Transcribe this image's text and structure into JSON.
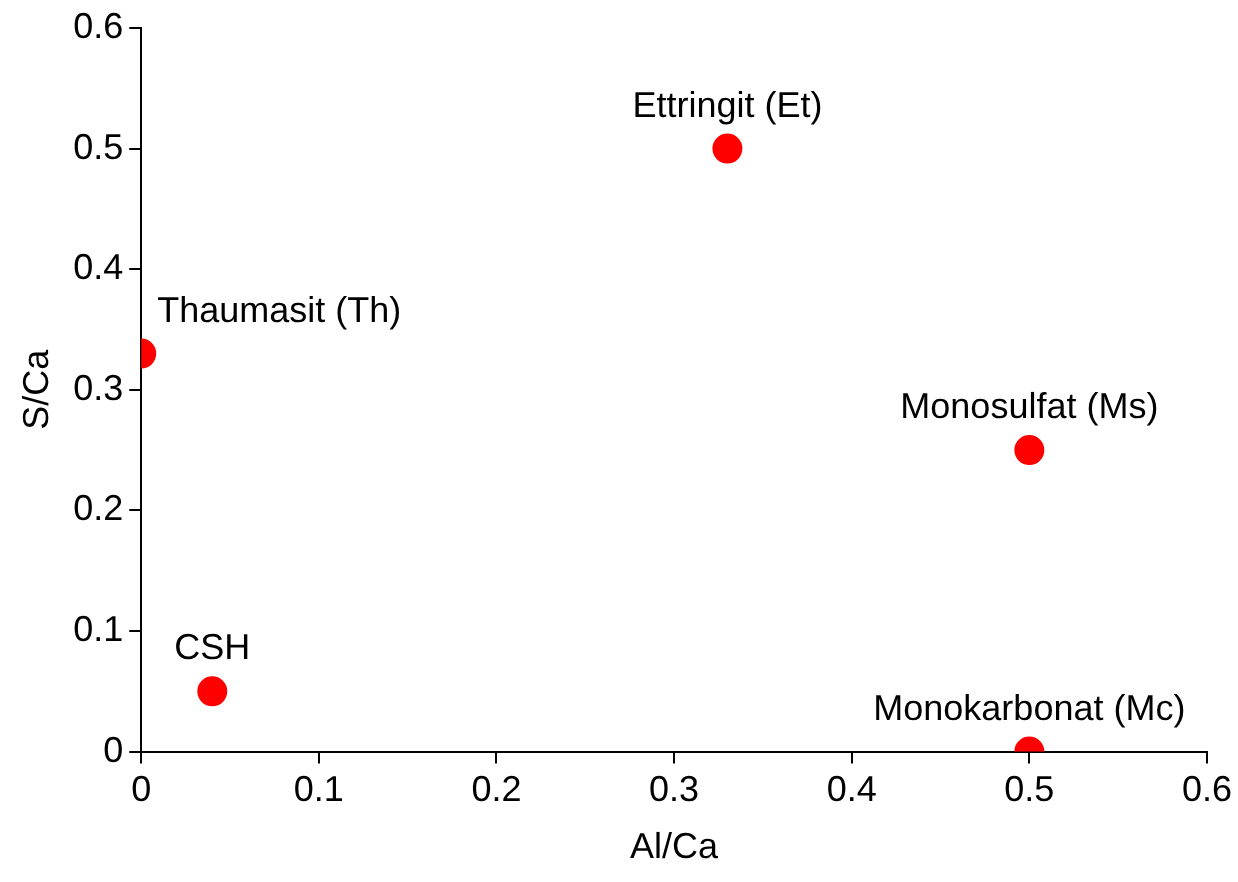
{
  "chart_data": {
    "type": "scatter",
    "xlabel": "Al/Ca",
    "ylabel": "S/Ca",
    "x": [
      0,
      0.04,
      0.33,
      0.5,
      0.5
    ],
    "series": [
      {
        "color": "#ff0000",
        "values": [
          0.33,
          0.05,
          0.5,
          0.25,
          0
        ]
      }
    ],
    "xlim": [
      0,
      0.6
    ],
    "xticks": [
      0,
      0.1,
      0.2,
      0.3,
      0.4,
      0.5,
      0.6
    ],
    "ylim": [
      0,
      0.6
    ],
    "yticks": [
      0,
      0.1,
      0.2,
      0.3,
      0.4,
      0.5,
      0.6
    ],
    "grid": false,
    "legend": false,
    "marker": "circle",
    "annotations": [
      {
        "text": "Thaumasit (Th)",
        "x": 0,
        "y": 0.33
      },
      {
        "text": "CSH",
        "x": 0.04,
        "y": 0.05
      },
      {
        "text": "Ettringit (Et)",
        "x": 0.33,
        "y": 0.5
      },
      {
        "text": "Monosulfat (Ms)",
        "x": 0.5,
        "y": 0.25
      },
      {
        "text": "Monokarbonat (Mc)",
        "x": 0.5,
        "y": 0
      }
    ]
  }
}
